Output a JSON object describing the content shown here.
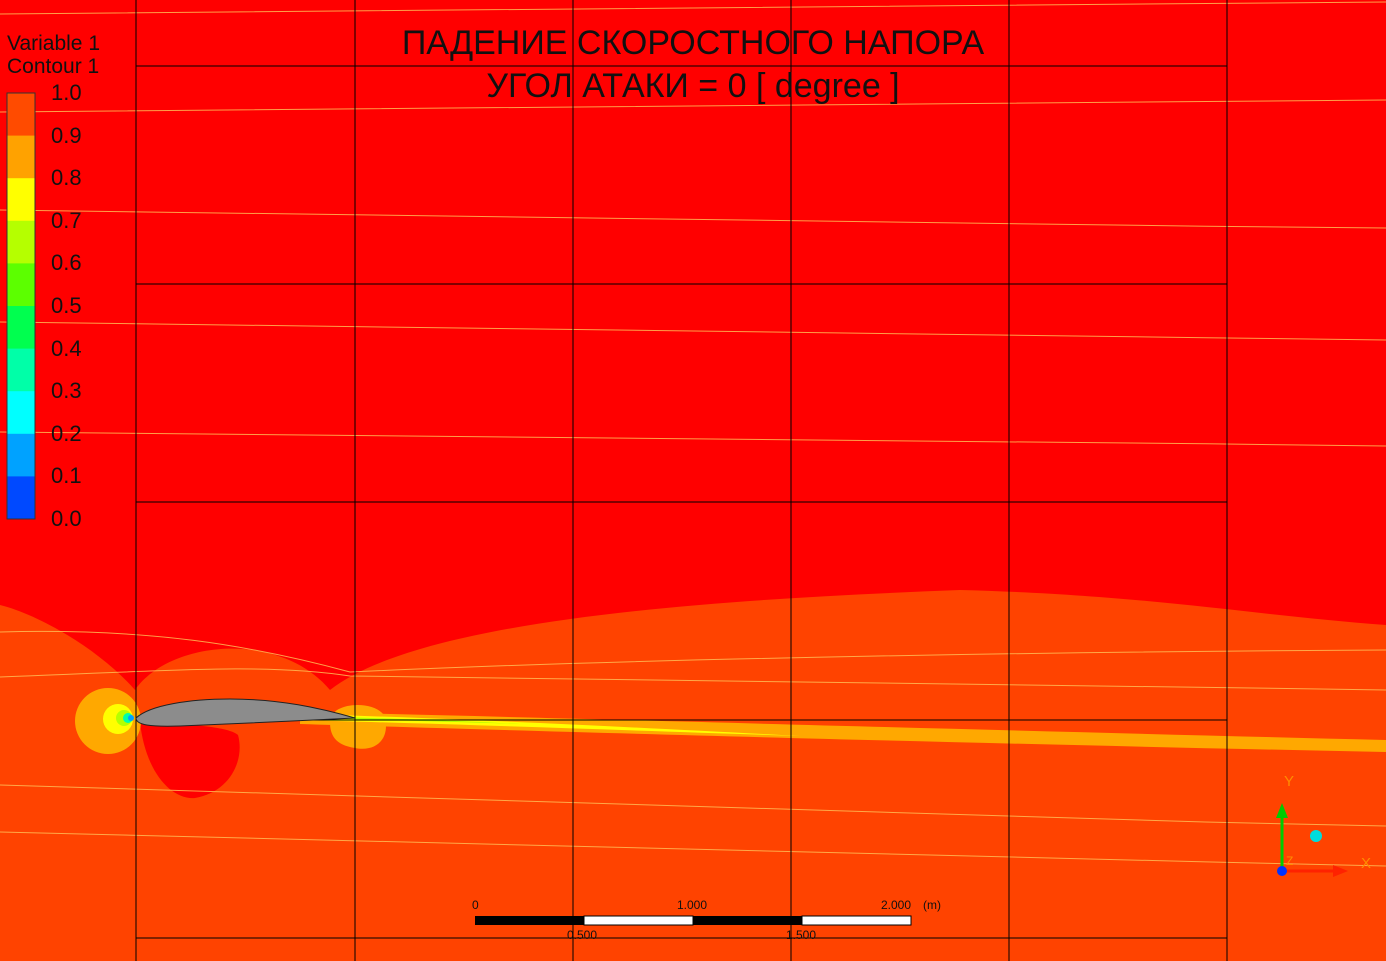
{
  "title": {
    "line1": "ПАДЕНИЕ СКОРОСТНОГО НАПОРА",
    "line2": "УГОЛ АТАКИ = 0 [ degree ]"
  },
  "legend": {
    "variable": "Variable 1",
    "contour": "Contour 1",
    "ticks": [
      "1.0",
      "0.9",
      "0.8",
      "0.7",
      "0.6",
      "0.5",
      "0.4",
      "0.3",
      "0.2",
      "0.1",
      "0.0"
    ],
    "colors": [
      "#ff4b00",
      "#ffa200",
      "#ffff00",
      "#b5ff00",
      "#5cff00",
      "#00ff4f",
      "#00ffa8",
      "#00ffff",
      "#00a2ff",
      "#0049ff"
    ]
  },
  "field_colors": {
    "outer": "#ff0000",
    "inner": "#ff4300",
    "wake": "#ffa800",
    "wake_core": "#ffff00",
    "airfoil": "#8c8c8c"
  },
  "scale_bar": {
    "top_labels": [
      "0",
      "1.000",
      "2.000"
    ],
    "unit": "(m)",
    "bottom_labels": [
      "0.500",
      "1.500"
    ]
  },
  "axes": {
    "y": "Y",
    "x": "X",
    "z": "Z"
  }
}
